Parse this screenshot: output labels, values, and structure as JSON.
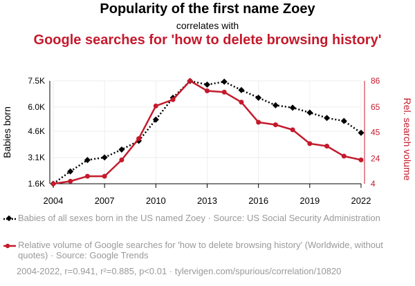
{
  "header": {
    "title": "Popularity of the first name Zoey",
    "subtitle": "correlates with",
    "title2": "Google searches for 'how to delete browsing history'"
  },
  "legend": {
    "series1": "Babies of all sexes born in the US named Zoey · Source: US Social Security Administration",
    "series2": "Relative volume of Google searches for 'how to delete browsing history' (Worldwide, without quotes) · Source: Google Trends"
  },
  "footer": "2004-2022, r=0.941, r²=0.885, p<0.01 · tylervigen.com/spurious/correlation/10820",
  "chart_data": {
    "type": "line",
    "x": [
      2004,
      2005,
      2006,
      2007,
      2008,
      2009,
      2010,
      2011,
      2012,
      2013,
      2014,
      2015,
      2016,
      2017,
      2018,
      2019,
      2020,
      2021,
      2022
    ],
    "series": [
      {
        "name": "Babies of all sexes born in the US named Zoey",
        "axis": "left",
        "color": "#000000",
        "style": "dotted",
        "marker": "diamond",
        "values": [
          1600,
          2310,
          2960,
          3110,
          3560,
          4060,
          5280,
          6530,
          7490,
          7280,
          7450,
          6970,
          6530,
          6100,
          5960,
          5680,
          5370,
          5200,
          4520
        ]
      },
      {
        "name": "Relative volume of Google searches for 'how to delete browsing history'",
        "axis": "right",
        "color": "#c41a2c",
        "style": "solid",
        "marker": "circle",
        "values": [
          4,
          6,
          10,
          10,
          23,
          40,
          66,
          71,
          86,
          78,
          77,
          69,
          53,
          51,
          47,
          36,
          34,
          26,
          23
        ]
      }
    ],
    "xlim": [
      2004,
      2022
    ],
    "xticks": [
      2004,
      2007,
      2010,
      2013,
      2016,
      2019,
      2022
    ],
    "ylabel": "Babies born",
    "ylim": [
      1600,
      7500
    ],
    "yticks": [
      1600,
      3100,
      4600,
      6000,
      7500
    ],
    "yticklabels": [
      "1.6K",
      "3.1K",
      "4.6K",
      "6.0K",
      "7.5K"
    ],
    "y2label": "Rel. search volume",
    "y2lim": [
      4,
      86
    ],
    "y2ticks": [
      4,
      24,
      45,
      65,
      86
    ],
    "grid": true,
    "legend_position": "bottom"
  }
}
